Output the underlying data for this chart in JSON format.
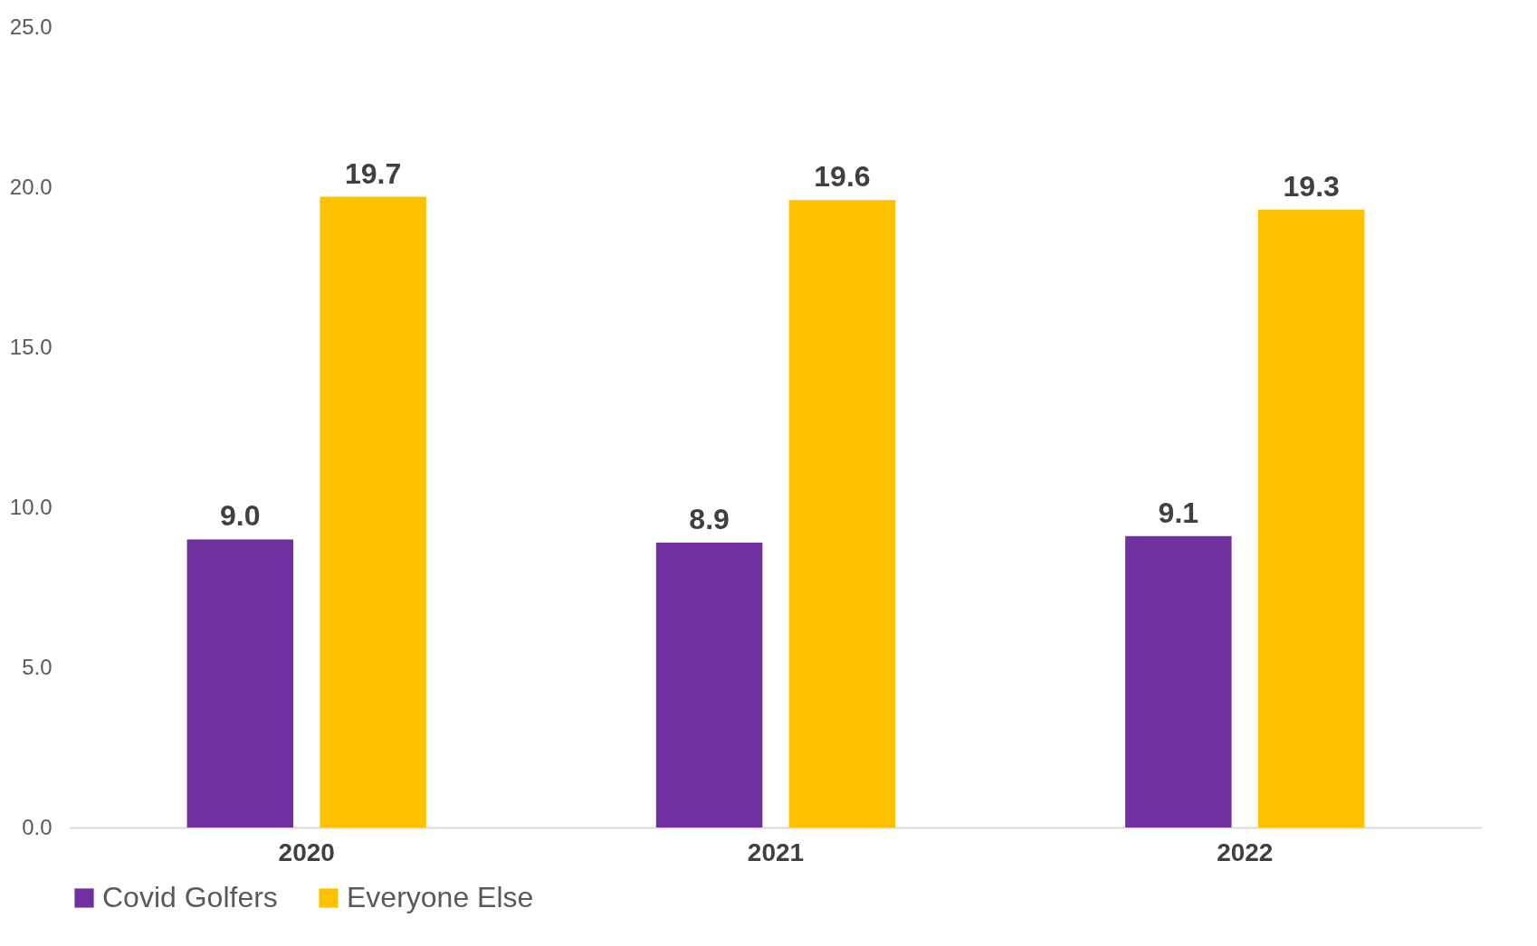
{
  "chart_data": {
    "type": "bar",
    "categories": [
      "2020",
      "2021",
      "2022"
    ],
    "series": [
      {
        "name": "Covid Golfers",
        "color": "#7030a0",
        "values": [
          9.0,
          8.9,
          9.1
        ],
        "value_labels": [
          "9.0",
          "8.9",
          "9.1"
        ]
      },
      {
        "name": "Everyone Else",
        "color": "#ffc000",
        "values": [
          19.7,
          19.6,
          19.3
        ],
        "value_labels": [
          "19.7",
          "19.6",
          "19.3"
        ]
      }
    ],
    "ylim": [
      0,
      25
    ],
    "yticks": [
      {
        "value": 0,
        "label": "0.0"
      },
      {
        "value": 5,
        "label": "5.0"
      },
      {
        "value": 10,
        "label": "10.0"
      },
      {
        "value": 15,
        "label": "15.0"
      },
      {
        "value": 20,
        "label": "20.0"
      },
      {
        "value": 25,
        "label": "25.0"
      }
    ],
    "grid": false,
    "legend": "bottom"
  }
}
